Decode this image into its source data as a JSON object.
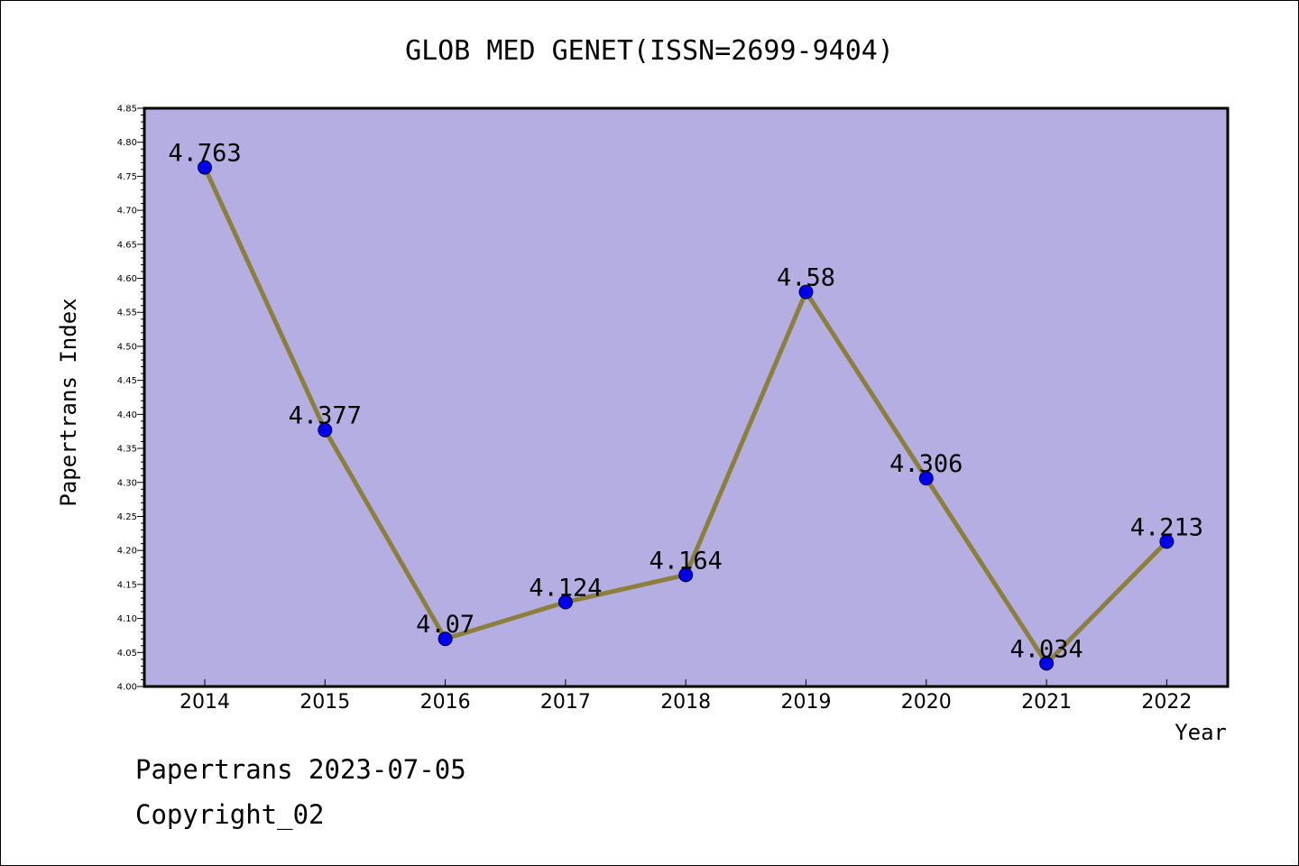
{
  "chart_data": {
    "type": "line",
    "title": "GLOB MED GENET(ISSN=2699-9404)",
    "xlabel": "Year",
    "ylabel": "Papertrans Index",
    "categories": [
      "2014",
      "2015",
      "2016",
      "2017",
      "2018",
      "2019",
      "2020",
      "2021",
      "2022"
    ],
    "series": [
      {
        "values": [
          4.763,
          4.377,
          4.07,
          4.124,
          4.164,
          4.58,
          4.306,
          4.034,
          4.213
        ],
        "labels": [
          "4.763",
          "4.377",
          "4.07",
          "4.124",
          "4.164",
          "4.58",
          "4.306",
          "4.034",
          "4.213"
        ]
      }
    ],
    "ylim": [
      4.0,
      4.85
    ],
    "yticks": [
      "4.00",
      "4.05",
      "4.10",
      "4.15",
      "4.20",
      "4.25",
      "4.30",
      "4.35",
      "4.40",
      "4.45",
      "4.50",
      "4.55",
      "4.60",
      "4.65",
      "4.70",
      "4.75",
      "4.80",
      "4.85"
    ],
    "grid": false,
    "legend": "none",
    "colors": {
      "plot_background": "#b5aee2",
      "line": "#8c7f3c",
      "marker": "#0000ee"
    }
  },
  "footer": {
    "line1": "Papertrans 2023-07-05",
    "line2": "Copyright_02"
  }
}
